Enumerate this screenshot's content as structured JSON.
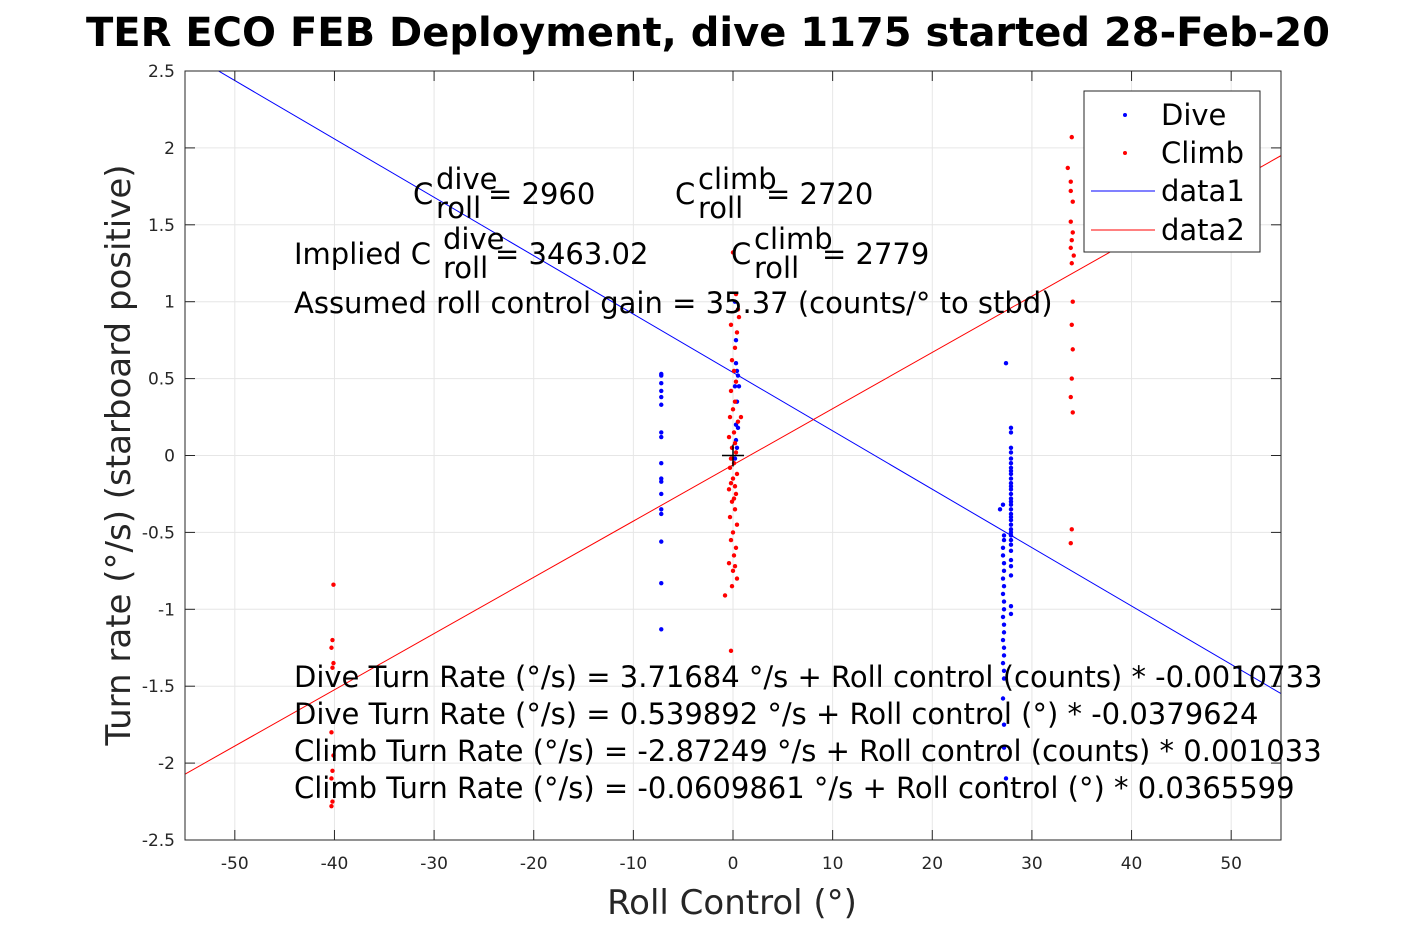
{
  "chart_data": {
    "type": "scatter",
    "title": "TER ECO FEB Deployment, dive 1175 started 28-Feb-20",
    "xlabel": "Roll Control (°)",
    "ylabel": "Turn rate (°/s) (starboard positive)",
    "xlim": [
      -55,
      55
    ],
    "ylim": [
      -2.5,
      2.5
    ],
    "xticks": [
      -50,
      -40,
      -30,
      -20,
      -10,
      0,
      10,
      20,
      30,
      40,
      50
    ],
    "yticks": [
      -2.5,
      -2,
      -1.5,
      -1,
      -0.5,
      0,
      0.5,
      1,
      1.5,
      2,
      2.5
    ],
    "grid": true,
    "legend_position": "top-right",
    "legend": [
      "Dive",
      "Climb",
      "data1",
      "data2"
    ],
    "colors": {
      "dive": "#0000ff",
      "climb": "#ff0000",
      "data1": "#0000ff",
      "data2": "#ff0000",
      "grid": "#e6e6e6",
      "axis": "#262626"
    },
    "series": [
      {
        "name": "Dive",
        "kind": "points",
        "points": [
          [
            -7.2,
            0.53
          ],
          [
            -7.2,
            0.52
          ],
          [
            -7.2,
            0.47
          ],
          [
            -7.2,
            0.42
          ],
          [
            -7.2,
            0.38
          ],
          [
            -7.2,
            0.33
          ],
          [
            -7.2,
            0.15
          ],
          [
            -7.2,
            0.12
          ],
          [
            -7.2,
            -0.05
          ],
          [
            -7.2,
            -0.15
          ],
          [
            -7.2,
            -0.17
          ],
          [
            -7.2,
            -0.25
          ],
          [
            -7.2,
            -0.35
          ],
          [
            -7.2,
            -0.38
          ],
          [
            -7.2,
            -0.56
          ],
          [
            -7.2,
            -0.83
          ],
          [
            -7.2,
            -1.13
          ],
          [
            0.2,
            1.0
          ],
          [
            0.3,
            0.75
          ],
          [
            0.3,
            0.6
          ],
          [
            0.4,
            0.55
          ],
          [
            0.5,
            0.52
          ],
          [
            0.2,
            0.45
          ],
          [
            0.4,
            0.35
          ],
          [
            0.3,
            0.2
          ],
          [
            0.3,
            0.1
          ],
          [
            0.4,
            0.05
          ],
          [
            0.2,
            -0.02
          ],
          [
            0.5,
            0.18
          ],
          [
            0.6,
            0.45
          ],
          [
            27.4,
            0.6
          ],
          [
            27.9,
            0.18
          ],
          [
            27.9,
            0.15
          ],
          [
            27.9,
            0.05
          ],
          [
            27.9,
            0.02
          ],
          [
            27.9,
            -0.02
          ],
          [
            27.9,
            -0.05
          ],
          [
            27.9,
            -0.08
          ],
          [
            27.9,
            -0.1
          ],
          [
            27.9,
            -0.12
          ],
          [
            27.9,
            -0.15
          ],
          [
            27.9,
            -0.18
          ],
          [
            27.9,
            -0.2
          ],
          [
            27.9,
            -0.22
          ],
          [
            27.9,
            -0.25
          ],
          [
            27.9,
            -0.28
          ],
          [
            27.9,
            -0.3
          ],
          [
            27.9,
            -0.32
          ],
          [
            27.9,
            -0.35
          ],
          [
            27.9,
            -0.38
          ],
          [
            27.9,
            -0.4
          ],
          [
            27.9,
            -0.42
          ],
          [
            27.9,
            -0.45
          ],
          [
            27.9,
            -0.48
          ],
          [
            27.9,
            -0.5
          ],
          [
            27.9,
            -0.52
          ],
          [
            27.9,
            -0.55
          ],
          [
            27.9,
            -0.58
          ],
          [
            27.9,
            -0.62
          ],
          [
            27.9,
            -0.68
          ],
          [
            27.9,
            -0.72
          ],
          [
            27.9,
            -0.78
          ],
          [
            27.9,
            -0.98
          ],
          [
            27.9,
            -1.03
          ],
          [
            26.8,
            -0.35
          ],
          [
            27.1,
            -0.32
          ],
          [
            27.2,
            -0.52
          ],
          [
            27.2,
            -0.55
          ],
          [
            27.1,
            -0.6
          ],
          [
            27.1,
            -0.65
          ],
          [
            27.2,
            -0.7
          ],
          [
            27.2,
            -0.75
          ],
          [
            27.1,
            -0.8
          ],
          [
            27.2,
            -0.85
          ],
          [
            27.1,
            -0.9
          ],
          [
            27.2,
            -0.95
          ],
          [
            27.2,
            -1.0
          ],
          [
            27.1,
            -1.05
          ],
          [
            27.2,
            -1.1
          ],
          [
            27.2,
            -1.15
          ],
          [
            27.1,
            -1.2
          ],
          [
            27.2,
            -1.25
          ],
          [
            27.2,
            -1.3
          ],
          [
            27.1,
            -1.35
          ],
          [
            27.2,
            -1.4
          ],
          [
            27.2,
            -1.45
          ],
          [
            27.1,
            -1.58
          ],
          [
            27.2,
            -1.75
          ],
          [
            27.2,
            -1.9
          ],
          [
            27.4,
            -2.1
          ]
        ]
      },
      {
        "name": "Climb",
        "kind": "points",
        "points": [
          [
            -40.1,
            -0.84
          ],
          [
            -40.2,
            -1.2
          ],
          [
            -40.3,
            -1.25
          ],
          [
            -40.1,
            -1.35
          ],
          [
            -40.2,
            -1.38
          ],
          [
            -40.3,
            -1.8
          ],
          [
            -40.1,
            -1.95
          ],
          [
            -40.2,
            -2.05
          ],
          [
            -40.3,
            -2.1
          ],
          [
            -40.2,
            -2.25
          ],
          [
            -40.3,
            -2.28
          ],
          [
            0,
            1.32
          ],
          [
            0.3,
            1.05
          ],
          [
            0.5,
            0.95
          ],
          [
            0.6,
            0.9
          ],
          [
            -0.2,
            0.85
          ],
          [
            0.4,
            0.8
          ],
          [
            0.2,
            0.7
          ],
          [
            -0.1,
            0.62
          ],
          [
            0.1,
            0.55
          ],
          [
            0.3,
            0.48
          ],
          [
            -0.2,
            0.42
          ],
          [
            0.2,
            0.35
          ],
          [
            0,
            0.3
          ],
          [
            -0.3,
            0.25
          ],
          [
            0.5,
            0.22
          ],
          [
            0.8,
            0.25
          ],
          [
            0.1,
            0.15
          ],
          [
            -0.4,
            0.12
          ],
          [
            0.2,
            0.08
          ],
          [
            -0.1,
            0.05
          ],
          [
            0.3,
            0.02
          ],
          [
            -0.2,
            -0.02
          ],
          [
            0.1,
            -0.05
          ],
          [
            -0.3,
            -0.08
          ],
          [
            0.4,
            -0.12
          ],
          [
            0,
            -0.15
          ],
          [
            -0.2,
            -0.18
          ],
          [
            0.2,
            -0.2
          ],
          [
            -0.4,
            -0.22
          ],
          [
            0.3,
            -0.25
          ],
          [
            0.1,
            -0.28
          ],
          [
            -0.1,
            -0.3
          ],
          [
            0.2,
            -0.35
          ],
          [
            -0.3,
            -0.4
          ],
          [
            0.4,
            -0.45
          ],
          [
            0,
            -0.5
          ],
          [
            -0.2,
            -0.55
          ],
          [
            0.3,
            -0.6
          ],
          [
            0.1,
            -0.65
          ],
          [
            -0.4,
            -0.7
          ],
          [
            0.2,
            -0.72
          ],
          [
            0,
            -0.75
          ],
          [
            0.4,
            -0.8
          ],
          [
            -0.1,
            -0.85
          ],
          [
            -0.8,
            -0.91
          ],
          [
            -0.2,
            -1.27
          ],
          [
            33.6,
            1.87
          ],
          [
            33.9,
            1.78
          ],
          [
            33.9,
            1.72
          ],
          [
            34.1,
            1.65
          ],
          [
            34.0,
            2.07
          ],
          [
            33.9,
            1.52
          ],
          [
            34.1,
            1.45
          ],
          [
            34.0,
            1.4
          ],
          [
            33.9,
            1.35
          ],
          [
            34.2,
            1.3
          ],
          [
            34.0,
            1.25
          ],
          [
            34.1,
            1.0
          ],
          [
            34.0,
            0.85
          ],
          [
            34.1,
            0.69
          ],
          [
            34.0,
            0.5
          ],
          [
            33.9,
            0.38
          ],
          [
            34.1,
            0.28
          ],
          [
            34.0,
            -0.48
          ],
          [
            33.9,
            -0.57
          ]
        ]
      },
      {
        "name": "data1",
        "kind": "line",
        "slope": -0.0379624,
        "intercept": 0.539892
      },
      {
        "name": "data2",
        "kind": "line",
        "slope": 0.0365599,
        "intercept": -0.0609861
      }
    ],
    "marker": [
      0,
      0
    ],
    "annotations": {
      "c_dive_base": "C",
      "c_dive_sup": "dive",
      "c_dive_sub": "roll",
      "c_dive_val": " = 2960",
      "c_climb_base": "C",
      "c_climb_sup": "climb",
      "c_climb_sub": "roll",
      "c_climb_val": " = 2720",
      "implied_prefix": "Implied C",
      "implied_sup": "dive",
      "implied_sub": "roll",
      "implied_val": " = 3463.02",
      "implied_climb_base": "C",
      "implied_climb_sup": "climb",
      "implied_climb_sub": "roll",
      "implied_climb_val": " = 2779",
      "assumed_gain": "Assumed roll control gain = 35.37 (counts/° to stbd)",
      "eq1": "Dive Turn Rate (°/s) = 3.71684 °/s + Roll control (counts) * -0.0010733",
      "eq2": "Dive Turn Rate (°/s) = 0.539892 °/s + Roll control (°) * -0.0379624",
      "eq3": "Climb Turn Rate (°/s) = -2.87249 °/s + Roll control (counts) * 0.001033",
      "eq4": "Climb Turn Rate (°/s) = -0.0609861 °/s + Roll control (°) * 0.0365599"
    }
  }
}
